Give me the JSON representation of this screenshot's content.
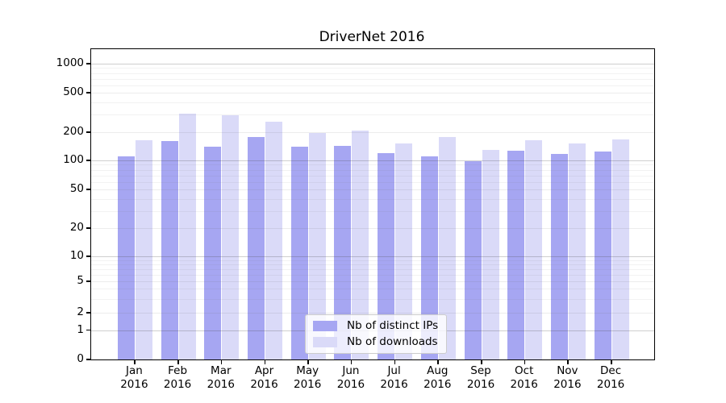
{
  "chart_data": {
    "type": "bar",
    "title": "DriverNet 2016",
    "categories": [
      "Jan 2016",
      "Feb 2016",
      "Mar 2016",
      "Apr 2016",
      "May 2016",
      "Jun 2016",
      "Jul 2016",
      "Aug 2016",
      "Sep 2016",
      "Oct 2016",
      "Nov 2016",
      "Dec 2016"
    ],
    "series": [
      {
        "name": "Nb of distinct IPs",
        "color": "#a6a6f2",
        "values": [
          110,
          160,
          140,
          177,
          141,
          143,
          119,
          111,
          99,
          126,
          117,
          124
        ]
      },
      {
        "name": "Nb of downloads",
        "color": "#dadaf8",
        "values": [
          165,
          310,
          295,
          257,
          195,
          207,
          153,
          178,
          130,
          163,
          153,
          166
        ]
      }
    ],
    "yticks": [
      0,
      1,
      2,
      5,
      10,
      20,
      50,
      100,
      200,
      500,
      1000
    ],
    "yscale": "symlog",
    "ylim": [
      0,
      1430
    ],
    "xlabel": "",
    "ylabel": "",
    "grid": true,
    "legend_position": "lower center"
  }
}
